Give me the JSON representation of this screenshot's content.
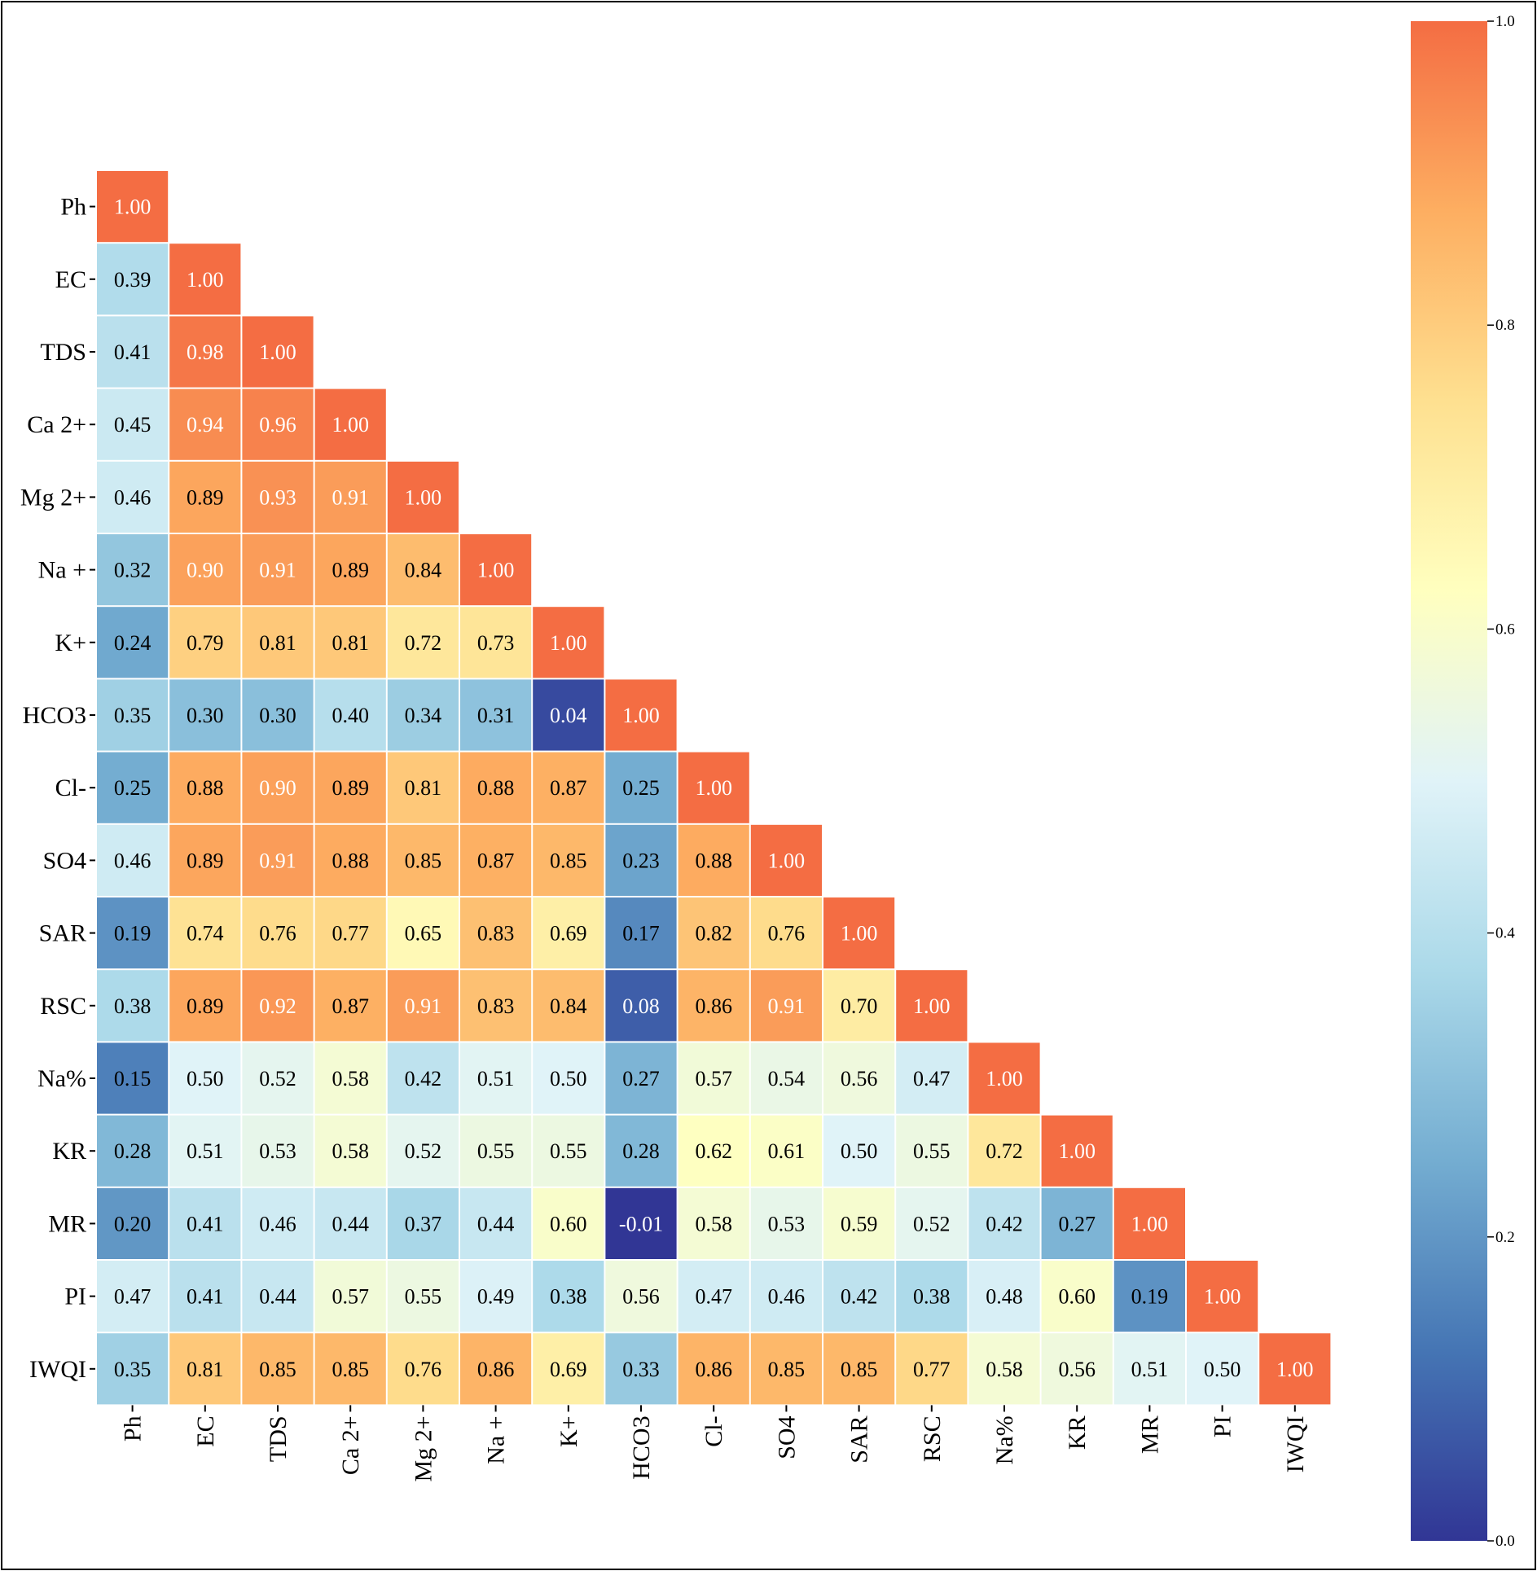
{
  "chart_data": {
    "type": "heatmap",
    "title": "",
    "variables": [
      "Ph",
      "EC",
      "TDS",
      "Ca 2+",
      "Mg 2+",
      "Na +",
      "K+",
      "HCO3",
      "Cl-",
      "SO4",
      "SAR",
      "RSC",
      "Na%",
      "KR",
      "MR",
      "PI",
      "IWQI"
    ],
    "values": [
      [
        "1.00"
      ],
      [
        "0.39",
        "1.00"
      ],
      [
        "0.41",
        "0.98",
        "1.00"
      ],
      [
        "0.45",
        "0.94",
        "0.96",
        "1.00"
      ],
      [
        "0.46",
        "0.89",
        "0.93",
        "0.91",
        "1.00"
      ],
      [
        "0.32",
        "0.90",
        "0.91",
        "0.89",
        "0.84",
        "1.00"
      ],
      [
        "0.24",
        "0.79",
        "0.81",
        "0.81",
        "0.72",
        "0.73",
        "1.00"
      ],
      [
        "0.35",
        "0.30",
        "0.30",
        "0.40",
        "0.34",
        "0.31",
        "0.04",
        "1.00"
      ],
      [
        "0.25",
        "0.88",
        "0.90",
        "0.89",
        "0.81",
        "0.88",
        "0.87",
        "0.25",
        "1.00"
      ],
      [
        "0.46",
        "0.89",
        "0.91",
        "0.88",
        "0.85",
        "0.87",
        "0.85",
        "0.23",
        "0.88",
        "1.00"
      ],
      [
        "0.19",
        "0.74",
        "0.76",
        "0.77",
        "0.65",
        "0.83",
        "0.69",
        "0.17",
        "0.82",
        "0.76",
        "1.00"
      ],
      [
        "0.38",
        "0.89",
        "0.92",
        "0.87",
        "0.91",
        "0.83",
        "0.84",
        "0.08",
        "0.86",
        "0.91",
        "0.70",
        "1.00"
      ],
      [
        "0.15",
        "0.50",
        "0.52",
        "0.58",
        "0.42",
        "0.51",
        "0.50",
        "0.27",
        "0.57",
        "0.54",
        "0.56",
        "0.47",
        "1.00"
      ],
      [
        "0.28",
        "0.51",
        "0.53",
        "0.58",
        "0.52",
        "0.55",
        "0.55",
        "0.28",
        "0.62",
        "0.61",
        "0.50",
        "0.55",
        "0.72",
        "1.00"
      ],
      [
        "0.20",
        "0.41",
        "0.46",
        "0.44",
        "0.37",
        "0.44",
        "0.60",
        "-0.01",
        "0.58",
        "0.53",
        "0.59",
        "0.52",
        "0.42",
        "0.27",
        "1.00"
      ],
      [
        "0.47",
        "0.41",
        "0.44",
        "0.57",
        "0.55",
        "0.49",
        "0.38",
        "0.56",
        "0.47",
        "0.46",
        "0.42",
        "0.38",
        "0.48",
        "0.60",
        "0.19",
        "1.00"
      ],
      [
        "0.35",
        "0.81",
        "0.85",
        "0.85",
        "0.76",
        "0.86",
        "0.69",
        "0.33",
        "0.86",
        "0.85",
        "0.85",
        "0.77",
        "0.58",
        "0.56",
        "0.51",
        "0.50",
        "1.00"
      ]
    ],
    "colorbar": {
      "min": 0.0,
      "max": 1.0,
      "ticks": [
        "0.0",
        "0.2",
        "0.4",
        "0.6",
        "0.8",
        "1.0"
      ],
      "colormap": "RdYlBu_r",
      "colors": [
        "#313695",
        "#4575b4",
        "#74add1",
        "#abd9e9",
        "#e0f3f8",
        "#ffffbf",
        "#fee090",
        "#fdae61",
        "#f46d43"
      ]
    },
    "mask": "upper-triangle",
    "grid": false,
    "legend": "right"
  },
  "colors": {
    "border": "#000000",
    "cell_gap": "#ffffff",
    "text_dark": "#000000",
    "text_light": "#ffffff"
  }
}
